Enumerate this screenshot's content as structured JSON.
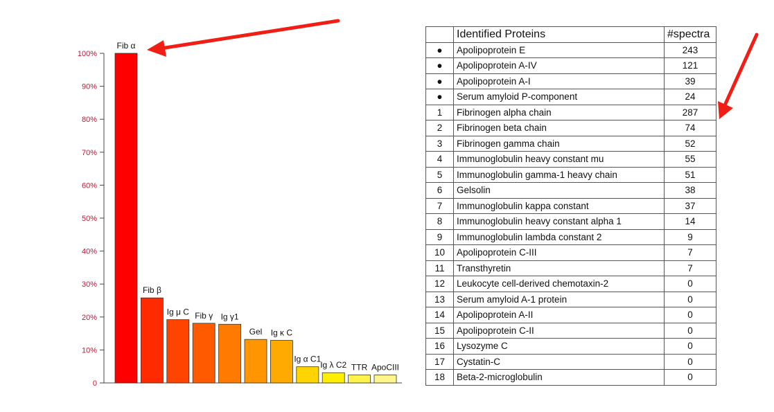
{
  "chart_data": {
    "type": "bar",
    "title": "",
    "xlabel": "",
    "ylabel": "",
    "ylim": [
      0,
      100
    ],
    "yticks": [
      "0",
      "10%",
      "20%",
      "30%",
      "40%",
      "50%",
      "60%",
      "70%",
      "80%",
      "90%",
      "100%"
    ],
    "categories": [
      "Fib α",
      "Fib β",
      "Ig μ C",
      "Fib γ",
      "Ig γ1",
      "Gel",
      "Ig κ C",
      "Ig α C1",
      "Ig λ C2",
      "TTR",
      "ApoCIII"
    ],
    "values": [
      100,
      25.8,
      19.2,
      18.1,
      17.8,
      13.2,
      12.9,
      4.9,
      3.1,
      2.4,
      2.4
    ],
    "colors": [
      "#ff0000",
      "#ff2a00",
      "#ff4400",
      "#ff5a00",
      "#ff7a00",
      "#ff9500",
      "#ffaa00",
      "#ffd400",
      "#ffee00",
      "#fff24d",
      "#fff58a"
    ]
  },
  "table": {
    "headers": [
      "",
      "Identified Proteins",
      "#spectra"
    ],
    "rows": [
      [
        "●",
        "Apolipoprotein E",
        "243"
      ],
      [
        "●",
        "Apolipoprotein A-IV",
        "121"
      ],
      [
        "●",
        "Apolipoprotein A-I",
        "39"
      ],
      [
        "●",
        "Serum amyloid P-component",
        "24"
      ],
      [
        "1",
        "Fibrinogen alpha chain",
        "287"
      ],
      [
        "2",
        "Fibrinogen beta chain",
        "74"
      ],
      [
        "3",
        "Fibrinogen gamma chain",
        "52"
      ],
      [
        "4",
        "Immunoglobulin heavy constant mu",
        "55"
      ],
      [
        "5",
        "Immunoglobulin gamma-1 heavy chain",
        "51"
      ],
      [
        "6",
        "Gelsolin",
        "38"
      ],
      [
        "7",
        "Immunoglobulin kappa constant",
        "37"
      ],
      [
        "8",
        "Immunoglobulin heavy constant alpha 1",
        "14"
      ],
      [
        "9",
        "Immunoglobulin lambda constant 2",
        "9"
      ],
      [
        "10",
        "Apolipoprotein C-III",
        "7"
      ],
      [
        "11",
        "Transthyretin",
        "7"
      ],
      [
        "12",
        "Leukocyte cell-derived chemotaxin-2",
        "0"
      ],
      [
        "13",
        "Serum amyloid A-1 protein",
        "0"
      ],
      [
        "14",
        "Apolipoprotein A-II",
        "0"
      ],
      [
        "15",
        "Apolipoprotein C-II",
        "0"
      ],
      [
        "16",
        "Lysozyme C",
        "0"
      ],
      [
        "17",
        "Cystatin-C",
        "0"
      ],
      [
        "18",
        "Beta-2-microglobulin",
        "0"
      ]
    ]
  },
  "colors": {
    "arrow": "#f01e14",
    "axis_text": "#c8102e"
  }
}
